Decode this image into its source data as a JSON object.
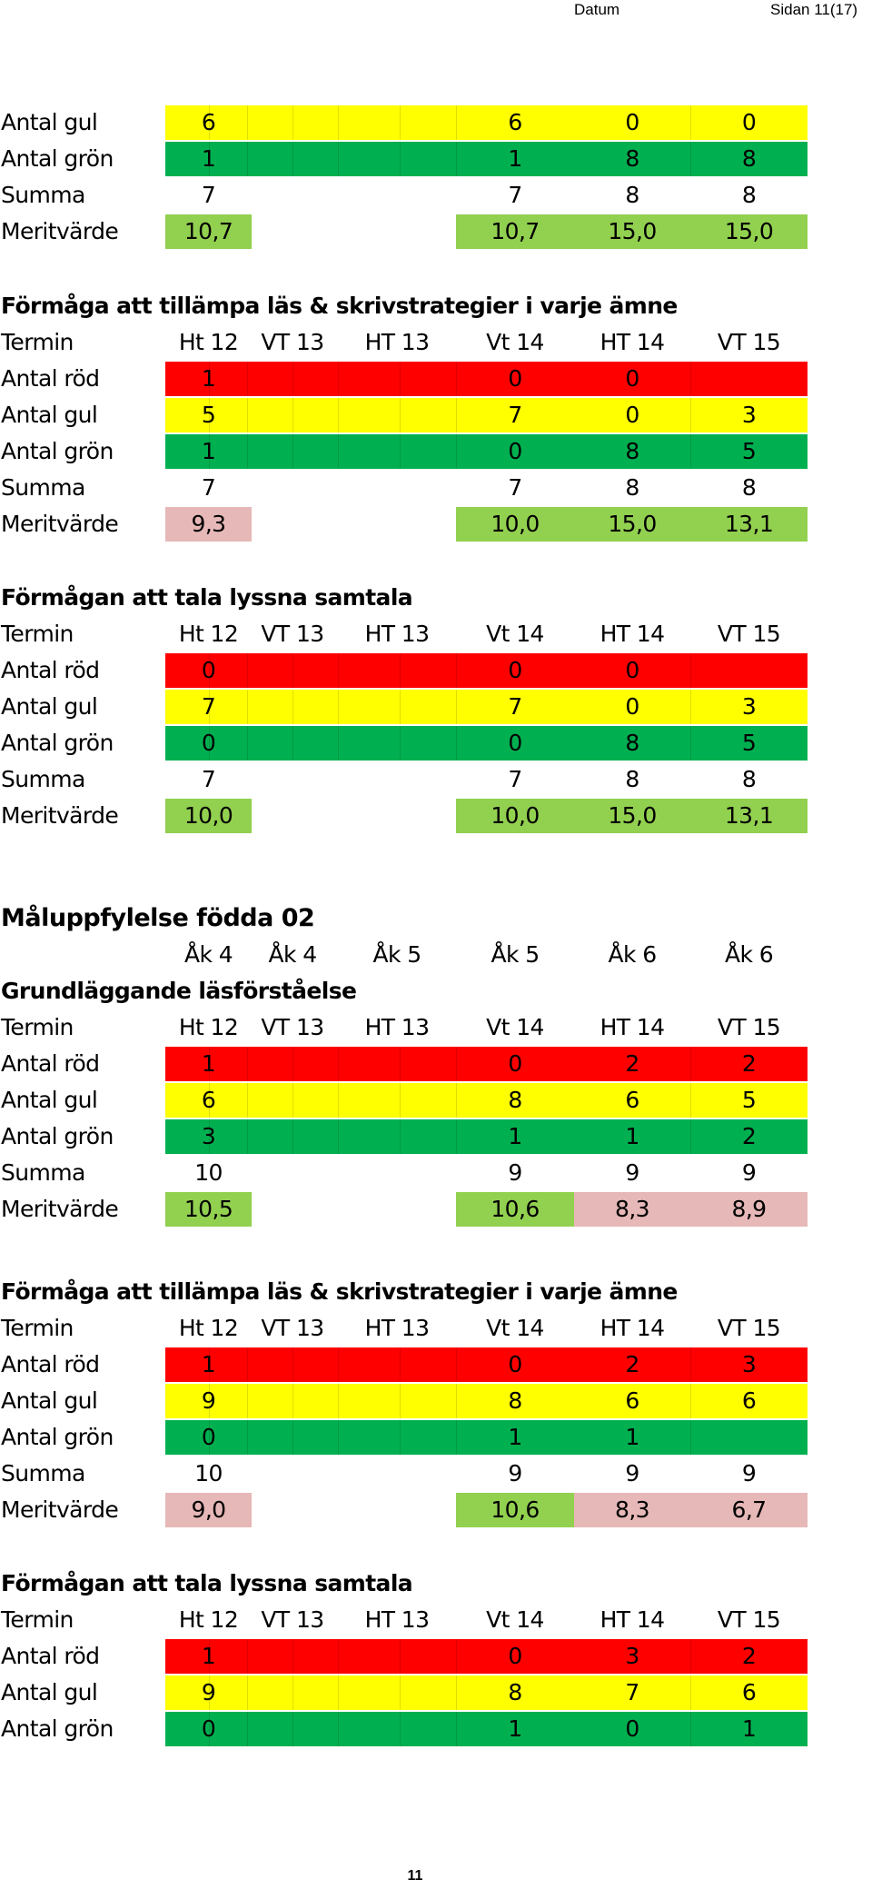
{
  "header": {
    "datum": "Datum",
    "page": "Sidan 11(17)"
  },
  "footer": {
    "page_number": "11"
  },
  "colors": {
    "red": "#ff0000",
    "yellow": "#ffff00",
    "green": "#00b050",
    "merit_good": "#92d050",
    "merit_low": "#e6b8b7"
  },
  "labels": {
    "termin": "Termin",
    "red": "Antal röd",
    "yellow": "Antal gul",
    "green": "Antal grön",
    "sum": "Summa",
    "merit": "Meritvärde"
  },
  "terms": [
    "Ht 12",
    "VT 13",
    "HT 13",
    "Vt 14",
    "HT 14",
    "VT 15"
  ],
  "sections": [
    {
      "partial": true,
      "yellow": [
        "6",
        "",
        "",
        "6",
        "0",
        "0"
      ],
      "green": [
        "1",
        "",
        "",
        "1",
        "8",
        "8"
      ],
      "sum": [
        "7",
        "",
        "",
        "7",
        "8",
        "8"
      ],
      "merit": [
        "10,7",
        "",
        "",
        "10,7",
        "15,0",
        "15,0"
      ],
      "merit_colors": [
        "g",
        "",
        "",
        "g",
        "g",
        "g"
      ]
    },
    {
      "title": "Förmåga att tillämpa läs & skrivstrategier i varje ämne",
      "red": [
        "1",
        "",
        "",
        "0",
        "0",
        ""
      ],
      "yellow": [
        "5",
        "",
        "",
        "7",
        "0",
        "3"
      ],
      "green": [
        "1",
        "",
        "",
        "0",
        "8",
        "5"
      ],
      "sum": [
        "7",
        "",
        "",
        "7",
        "8",
        "8"
      ],
      "merit": [
        "9,3",
        "",
        "",
        "10,0",
        "15,0",
        "13,1"
      ],
      "merit_colors": [
        "p",
        "",
        "",
        "g",
        "g",
        "g"
      ]
    },
    {
      "title": "Förmågan att tala lyssna samtala",
      "red": [
        "0",
        "",
        "",
        "0",
        "0",
        ""
      ],
      "yellow": [
        "7",
        "",
        "",
        "7",
        "0",
        "3"
      ],
      "green": [
        "0",
        "",
        "",
        "0",
        "8",
        "5"
      ],
      "sum": [
        "7",
        "",
        "",
        "7",
        "8",
        "8"
      ],
      "merit": [
        "10,0",
        "",
        "",
        "10,0",
        "15,0",
        "13,1"
      ],
      "merit_colors": [
        "g",
        "",
        "",
        "g",
        "g",
        "g"
      ]
    },
    {
      "main_title": "Måluppfylelse födda 02",
      "grades": [
        "Åk 4",
        "Åk 4",
        "Åk 5",
        "Åk 5",
        "Åk 6",
        "Åk 6"
      ],
      "title": "Grundläggande läsförståelse",
      "red": [
        "1",
        "",
        "",
        "0",
        "2",
        "2"
      ],
      "yellow": [
        "6",
        "",
        "",
        "8",
        "6",
        "5"
      ],
      "green": [
        "3",
        "",
        "",
        "1",
        "1",
        "2"
      ],
      "sum": [
        "10",
        "",
        "",
        "9",
        "9",
        "9"
      ],
      "merit": [
        "10,5",
        "",
        "",
        "10,6",
        "8,3",
        "8,9"
      ],
      "merit_colors": [
        "g",
        "",
        "",
        "g",
        "p",
        "p"
      ]
    },
    {
      "title": "Förmåga att tillämpa läs & skrivstrategier i varje ämne",
      "red": [
        "1",
        "",
        "",
        "0",
        "2",
        "3"
      ],
      "yellow": [
        "9",
        "",
        "",
        "8",
        "6",
        "6"
      ],
      "green": [
        "0",
        "",
        "",
        "1",
        "1",
        ""
      ],
      "sum": [
        "10",
        "",
        "",
        "9",
        "9",
        "9"
      ],
      "merit": [
        "9,0",
        "",
        "",
        "10,6",
        "8,3",
        "6,7"
      ],
      "merit_colors": [
        "p",
        "",
        "",
        "g",
        "p",
        "p"
      ]
    },
    {
      "title": "Förmågan att tala lyssna samtala",
      "red": [
        "1",
        "",
        "",
        "0",
        "3",
        "2"
      ],
      "yellow": [
        "9",
        "",
        "",
        "8",
        "7",
        "6"
      ],
      "green": [
        "0",
        "",
        "",
        "1",
        "0",
        "1"
      ]
    }
  ]
}
